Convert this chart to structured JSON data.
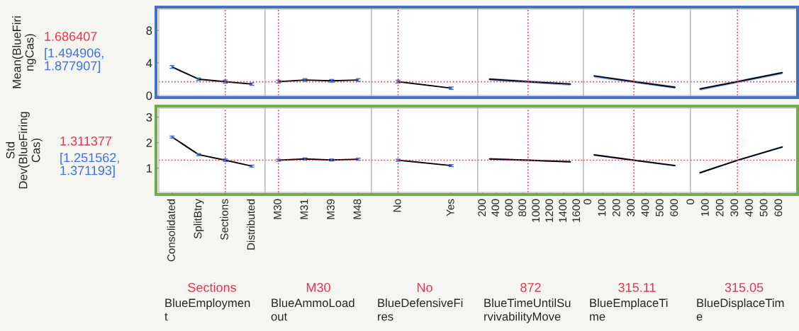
{
  "chart_data": [
    {
      "type": "line",
      "ylabel": "Mean(BlueFiri\nngCas)",
      "annotations": [
        "[1.494906,\n1.877907]"
      ],
      "categories": [
        "Consolidated",
        "SplitBtry",
        "Sections",
        "Distributed"
      ],
      "ylim": [
        0,
        10.6
      ],
      "yticks": [
        0,
        4,
        8
      ],
      "tick_labels": "y",
      "series": [
        {
          "color": "#000000",
          "values": [
            3.5,
            2.0,
            1.7,
            1.4
          ],
          "errors": [
            0.17,
            0.15,
            0.19,
            0.15
          ]
        }
      ],
      "ref_lines": [
        {
          "axis": "x",
          "value": "Sections",
          "color": "#e8344a",
          "line_style": "dotted"
        },
        {
          "axis": "y",
          "value": 1.686407,
          "label": "1.686407",
          "color": "#e8344a",
          "line_style": "dotted"
        }
      ]
    },
    {
      "type": "line",
      "categories": [
        "M30",
        "M31",
        "M39",
        "M48"
      ],
      "ylim": [
        0,
        10.6
      ],
      "yticks": [
        0,
        4,
        8
      ],
      "tick_labels": false,
      "series": [
        {
          "color": "#000000",
          "values": [
            1.7,
            1.9,
            1.8,
            1.9
          ],
          "errors": [
            0.17,
            0.17,
            0.17,
            0.17
          ]
        }
      ],
      "ref_lines": [
        {
          "axis": "x",
          "value": "M30",
          "color": "#e8344a",
          "line_style": "dotted"
        },
        {
          "axis": "y",
          "value": 1.686407,
          "color": "#e8344a",
          "line_style": "dotted"
        }
      ]
    },
    {
      "type": "line",
      "categories": [
        "No",
        "Yes"
      ],
      "ylim": [
        0,
        10.6
      ],
      "yticks": [
        0,
        4,
        8
      ],
      "tick_labels": false,
      "series": [
        {
          "color": "#000000",
          "values": [
            1.7,
            0.9
          ],
          "errors": [
            0.17,
            0.15
          ]
        }
      ],
      "ref_lines": [
        {
          "axis": "x",
          "value": "No",
          "color": "#e8344a",
          "line_style": "dotted"
        },
        {
          "axis": "y",
          "value": 1.686407,
          "color": "#e8344a",
          "line_style": "dotted"
        }
      ]
    },
    {
      "type": "line",
      "xlim": [
        126,
        1695
      ],
      "xticks": [
        200,
        400,
        600,
        800,
        1000,
        1200,
        1400,
        1600
      ],
      "ylim": [
        0,
        10.6
      ],
      "yticks": [
        0,
        4,
        8
      ],
      "tick_labels": false,
      "series": [
        {
          "color": "#000000",
          "x": [
            300,
            872,
            1500
          ],
          "values": [
            2.0,
            1.7,
            1.4
          ],
          "lower": [
            1.81,
            1.52,
            1.2
          ],
          "upper": [
            2.15,
            1.85,
            1.54
          ]
        }
      ],
      "ref_lines": [
        {
          "axis": "x",
          "value": 872,
          "color": "#e8344a",
          "line_style": "dotted"
        },
        {
          "axis": "y",
          "value": 1.686407,
          "color": "#e8344a",
          "line_style": "dotted"
        }
      ]
    },
    {
      "type": "line",
      "xlim": [
        -34,
        708
      ],
      "xticks": [
        0,
        100,
        200,
        300,
        400,
        500,
        600
      ],
      "ylim": [
        0,
        10.6
      ],
      "yticks": [
        0,
        4,
        8
      ],
      "tick_labels": false,
      "series": [
        {
          "color": "#000000",
          "x": [
            40,
            315.11,
            600
          ],
          "values": [
            2.4,
            1.7,
            1.0
          ],
          "lower": [
            2.18,
            1.52,
            0.83
          ],
          "upper": [
            2.52,
            1.85,
            1.17
          ]
        }
      ],
      "ref_lines": [
        {
          "axis": "x",
          "value": 315.11,
          "color": "#e8344a",
          "line_style": "dotted"
        },
        {
          "axis": "y",
          "value": 1.686407,
          "color": "#e8344a",
          "line_style": "dotted"
        }
      ]
    },
    {
      "type": "line",
      "xlim": [
        -5,
        725
      ],
      "xticks": [
        0,
        100,
        200,
        300,
        400,
        500,
        600
      ],
      "ylim": [
        0,
        10.6
      ],
      "yticks": [
        0,
        4,
        8
      ],
      "tick_labels": false,
      "series": [
        {
          "color": "#000000",
          "x": [
            60,
            315.05,
            620
          ],
          "values": [
            0.8,
            1.7,
            2.8
          ],
          "lower": [
            0.58,
            1.52,
            2.58
          ],
          "upper": [
            0.92,
            1.85,
            2.92
          ]
        }
      ],
      "ref_lines": [
        {
          "axis": "x",
          "value": 315.05,
          "color": "#e8344a",
          "line_style": "dotted"
        },
        {
          "axis": "y",
          "value": 1.686407,
          "color": "#e8344a",
          "line_style": "dotted"
        }
      ]
    },
    {
      "type": "line",
      "ylabel": "Std\nDev(BlueFiring\nCas)",
      "annotations": [
        "[1.251562,\n1.371193]"
      ],
      "xlabel": "BlueEmploymen\nt",
      "categories": [
        "Consolidated",
        "SplitBtry",
        "Sections",
        "Distributed"
      ],
      "ylim": [
        0.05,
        3.35
      ],
      "yticks": [
        1,
        2,
        3
      ],
      "series": [
        {
          "color": "#000000",
          "values": [
            2.22,
            1.53,
            1.31,
            1.08
          ],
          "errors": [
            0.04,
            0.04,
            0.05,
            0.04
          ]
        }
      ],
      "ref_lines": [
        {
          "axis": "x",
          "value": "Sections",
          "label": "Sections",
          "color": "#e8344a",
          "line_style": "dotted"
        },
        {
          "axis": "y",
          "value": 1.311377,
          "label": "1.311377",
          "color": "#e8344a",
          "line_style": "dotted"
        }
      ]
    },
    {
      "type": "line",
      "xlabel": "BlueAmmoLoad\nout",
      "categories": [
        "M30",
        "M31",
        "M39",
        "M48"
      ],
      "ylim": [
        0.05,
        3.35
      ],
      "yticks": [
        1,
        2,
        3
      ],
      "tick_labels": "x",
      "series": [
        {
          "color": "#000000",
          "values": [
            1.31,
            1.36,
            1.32,
            1.35
          ],
          "errors": [
            0.04,
            0.04,
            0.04,
            0.04
          ]
        }
      ],
      "ref_lines": [
        {
          "axis": "x",
          "value": "M30",
          "label": "M30",
          "color": "#e8344a",
          "line_style": "dotted"
        },
        {
          "axis": "y",
          "value": 1.311377,
          "color": "#e8344a",
          "line_style": "dotted"
        }
      ]
    },
    {
      "type": "line",
      "xlabel": "BlueDefensiveFi\nres",
      "categories": [
        "No",
        "Yes"
      ],
      "ylim": [
        0.05,
        3.35
      ],
      "yticks": [
        1,
        2,
        3
      ],
      "tick_labels": "x",
      "series": [
        {
          "color": "#000000",
          "values": [
            1.31,
            1.1
          ],
          "errors": [
            0.04,
            0.04
          ]
        }
      ],
      "ref_lines": [
        {
          "axis": "x",
          "value": "No",
          "label": "No",
          "color": "#e8344a",
          "line_style": "dotted"
        },
        {
          "axis": "y",
          "value": 1.311377,
          "color": "#e8344a",
          "line_style": "dotted"
        }
      ]
    },
    {
      "type": "line",
      "xlabel": "BlueTimeUntilSu\nrvivabilityMove",
      "xlim": [
        126,
        1695
      ],
      "xticks": [
        200,
        400,
        600,
        800,
        1000,
        1200,
        1400,
        1600
      ],
      "ylim": [
        0.05,
        3.35
      ],
      "yticks": [
        1,
        2,
        3
      ],
      "tick_labels": "x",
      "series": [
        {
          "color": "#000000",
          "x": [
            300,
            872,
            1500
          ],
          "values": [
            1.36,
            1.31,
            1.25
          ],
          "lower": [
            1.32,
            1.28,
            1.21
          ],
          "upper": [
            1.4,
            1.34,
            1.29
          ]
        }
      ],
      "ref_lines": [
        {
          "axis": "x",
          "value": 872,
          "label": "872",
          "color": "#e8344a",
          "line_style": "dotted"
        },
        {
          "axis": "y",
          "value": 1.311377,
          "color": "#e8344a",
          "line_style": "dotted"
        }
      ]
    },
    {
      "type": "line",
      "xlabel": "BlueEmplaceTi\nme",
      "xlim": [
        -34,
        708
      ],
      "xticks": [
        0,
        100,
        200,
        300,
        400,
        500,
        600
      ],
      "ylim": [
        0.05,
        3.35
      ],
      "yticks": [
        1,
        2,
        3
      ],
      "tick_labels": "x",
      "series": [
        {
          "color": "#000000",
          "x": [
            40,
            315.11,
            600
          ],
          "values": [
            1.52,
            1.31,
            1.1
          ],
          "lower": [
            1.48,
            1.28,
            1.06
          ],
          "upper": [
            1.56,
            1.34,
            1.14
          ]
        }
      ],
      "ref_lines": [
        {
          "axis": "x",
          "value": 315.11,
          "label": "315.11",
          "color": "#e8344a",
          "line_style": "dotted"
        },
        {
          "axis": "y",
          "value": 1.311377,
          "color": "#e8344a",
          "line_style": "dotted"
        }
      ]
    },
    {
      "type": "line",
      "xlabel": "BlueDisplaceTim\ne",
      "xlim": [
        -5,
        725
      ],
      "xticks": [
        0,
        100,
        200,
        300,
        400,
        500,
        600
      ],
      "ylim": [
        0.05,
        3.35
      ],
      "yticks": [
        1,
        2,
        3
      ],
      "tick_labels": "x",
      "series": [
        {
          "color": "#000000",
          "x": [
            60,
            315.05,
            620
          ],
          "values": [
            0.82,
            1.31,
            1.83
          ],
          "lower": [
            0.78,
            1.28,
            1.79
          ],
          "upper": [
            0.86,
            1.34,
            1.87
          ]
        }
      ],
      "ref_lines": [
        {
          "axis": "x",
          "value": 315.05,
          "label": "315.05",
          "color": "#e8344a",
          "line_style": "dotted"
        },
        {
          "axis": "y",
          "value": 1.311377,
          "color": "#e8344a",
          "line_style": "dotted"
        }
      ]
    }
  ]
}
